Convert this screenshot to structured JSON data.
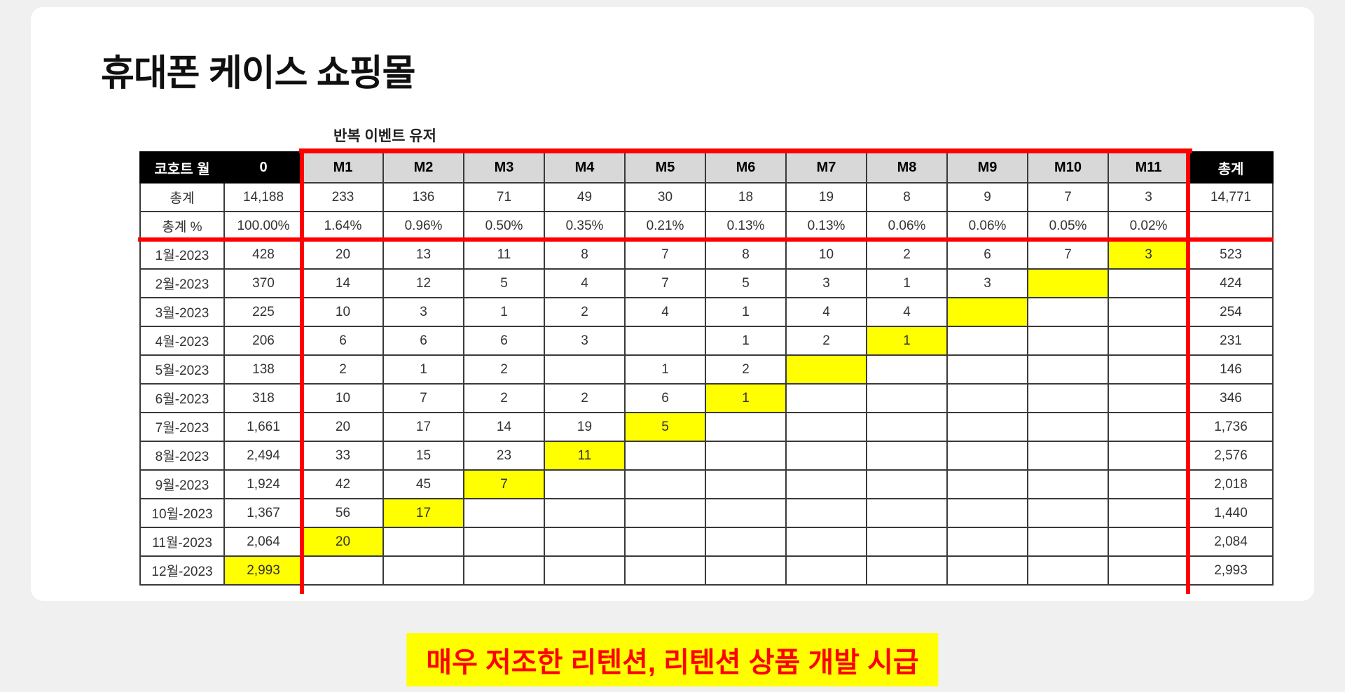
{
  "page": {
    "title": "휴대폰 케이스 쇼핑몰",
    "table_label": "반복 이벤트 유저",
    "banner": "매우 저조한 리텐션, 리텐션 상품 개발 시급"
  },
  "colors": {
    "highlight_yellow": "#ffff00",
    "annotation_red": "#ff0000",
    "header_black_bg": "#000000",
    "header_gray_bg": "#d8d8d8"
  },
  "chart_data": {
    "type": "table",
    "title": "휴대폰 케이스 쇼핑몰 코호트 리텐션",
    "columns": [
      "코호트 월",
      "0",
      "M1",
      "M2",
      "M3",
      "M4",
      "M5",
      "M6",
      "M7",
      "M8",
      "M9",
      "M10",
      "M11",
      "총계"
    ],
    "rows": [
      {
        "label": "총계",
        "cells": [
          "14,188",
          "233",
          "136",
          "71",
          "49",
          "30",
          "18",
          "19",
          "8",
          "9",
          "7",
          "3"
        ],
        "total": "14,771",
        "highlight_col": null
      },
      {
        "label": "총계 %",
        "cells": [
          "100.00%",
          "1.64%",
          "0.96%",
          "0.50%",
          "0.35%",
          "0.21%",
          "0.13%",
          "0.13%",
          "0.06%",
          "0.06%",
          "0.05%",
          "0.02%"
        ],
        "total": "",
        "highlight_col": null
      },
      {
        "label": "1월-2023",
        "cells": [
          "428",
          "20",
          "13",
          "11",
          "8",
          "7",
          "8",
          "10",
          "2",
          "6",
          "7",
          "3"
        ],
        "total": "523",
        "highlight_col": 11
      },
      {
        "label": "2월-2023",
        "cells": [
          "370",
          "14",
          "12",
          "5",
          "4",
          "7",
          "5",
          "3",
          "1",
          "3",
          "",
          ""
        ],
        "total": "424",
        "highlight_col": 10
      },
      {
        "label": "3월-2023",
        "cells": [
          "225",
          "10",
          "3",
          "1",
          "2",
          "4",
          "1",
          "4",
          "4",
          "",
          "",
          ""
        ],
        "total": "254",
        "highlight_col": 9
      },
      {
        "label": "4월-2023",
        "cells": [
          "206",
          "6",
          "6",
          "6",
          "3",
          "",
          "1",
          "2",
          "1",
          "",
          "",
          ""
        ],
        "total": "231",
        "highlight_col": 8
      },
      {
        "label": "5월-2023",
        "cells": [
          "138",
          "2",
          "1",
          "2",
          "",
          "1",
          "2",
          "",
          "",
          "",
          "",
          ""
        ],
        "total": "146",
        "highlight_col": 7
      },
      {
        "label": "6월-2023",
        "cells": [
          "318",
          "10",
          "7",
          "2",
          "2",
          "6",
          "1",
          "",
          "",
          "",
          "",
          ""
        ],
        "total": "346",
        "highlight_col": 6
      },
      {
        "label": "7월-2023",
        "cells": [
          "1,661",
          "20",
          "17",
          "14",
          "19",
          "5",
          "",
          "",
          "",
          "",
          "",
          ""
        ],
        "total": "1,736",
        "highlight_col": 5
      },
      {
        "label": "8월-2023",
        "cells": [
          "2,494",
          "33",
          "15",
          "23",
          "11",
          "",
          "",
          "",
          "",
          "",
          "",
          ""
        ],
        "total": "2,576",
        "highlight_col": 4
      },
      {
        "label": "9월-2023",
        "cells": [
          "1,924",
          "42",
          "45",
          "7",
          "",
          "",
          "",
          "",
          "",
          "",
          "",
          ""
        ],
        "total": "2,018",
        "highlight_col": 3
      },
      {
        "label": "10월-2023",
        "cells": [
          "1,367",
          "56",
          "17",
          "",
          "",
          "",
          "",
          "",
          "",
          "",
          "",
          ""
        ],
        "total": "1,440",
        "highlight_col": 2
      },
      {
        "label": "11월-2023",
        "cells": [
          "2,064",
          "20",
          "",
          "",
          "",
          "",
          "",
          "",
          "",
          "",
          "",
          ""
        ],
        "total": "2,084",
        "highlight_col": 1
      },
      {
        "label": "12월-2023",
        "cells": [
          "2,993",
          "",
          "",
          "",
          "",
          "",
          "",
          "",
          "",
          "",
          "",
          ""
        ],
        "total": "2,993",
        "highlight_col": 0
      }
    ]
  }
}
